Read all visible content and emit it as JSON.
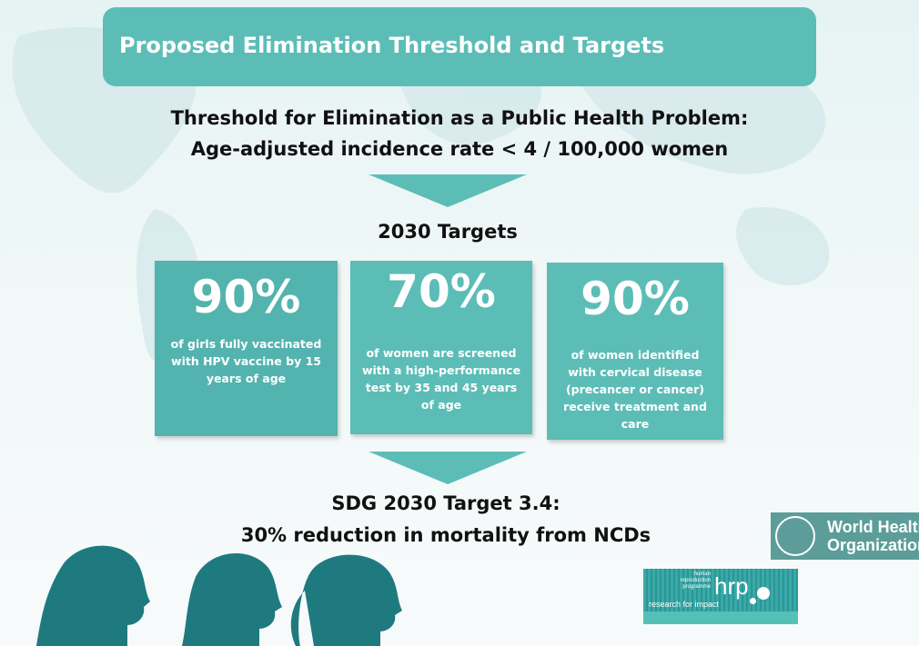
{
  "header": {
    "title": "Proposed Elimination Threshold and Targets"
  },
  "threshold": {
    "line1": "Threshold for Elimination as a Public Health Problem:",
    "line2": "Age-adjusted incidence rate < 4 / 100,000 women"
  },
  "targets": {
    "heading": "2030 Targets",
    "items": [
      {
        "value": "90%",
        "description": "of girls fully vaccinated with HPV vaccine by 15 years of age"
      },
      {
        "value": "70%",
        "description": "of women are screened with a high-performance test by 35 and 45 years of age"
      },
      {
        "value": "90%",
        "description": "of women identified with cervical disease (precancer or cancer) receive treatment and care"
      }
    ]
  },
  "sdg": {
    "line1": "SDG  2030 Target 3.4:",
    "line2": "30% reduction in mortality from NCDs"
  },
  "logos": {
    "who": {
      "line1": "World Health",
      "line2": "Organization"
    },
    "hrp": {
      "name": "hrp",
      "small": "human reproduction programme",
      "tagline": "research for impact"
    }
  },
  "colors": {
    "teal": "#5cbdb7",
    "head": "#1f7a80",
    "who": "#5c9d99"
  }
}
